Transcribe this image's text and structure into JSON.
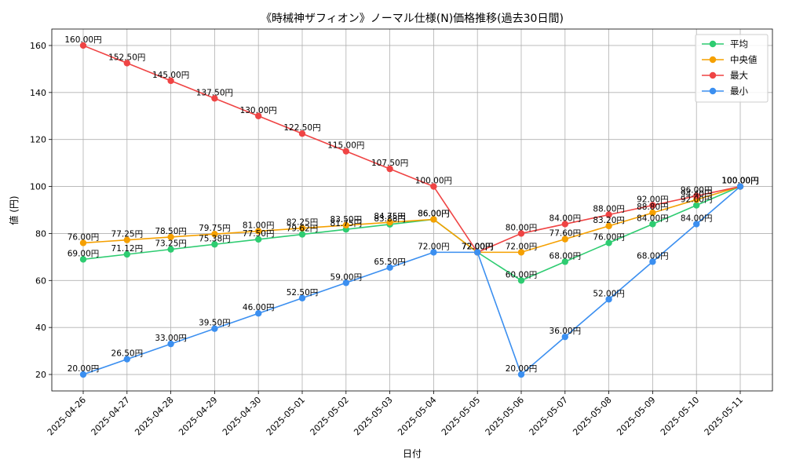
{
  "chart_data": {
    "type": "line",
    "title": "《時械神ザフィオン》ノーマル仕様(N)価格推移(過去30日間)",
    "xlabel": "日付",
    "ylabel": "値 (円)",
    "ylim": [
      13,
      167
    ],
    "yticks": [
      20,
      40,
      60,
      80,
      100,
      120,
      140,
      160
    ],
    "grid": true,
    "legend_position": "top-right",
    "label_suffix": "円",
    "x": [
      "2025-04-26",
      "2025-04-27",
      "2025-04-28",
      "2025-04-29",
      "2025-04-30",
      "2025-05-01",
      "2025-05-02",
      "2025-05-03",
      "2025-05-04",
      "2025-05-05",
      "2025-05-06",
      "2025-05-07",
      "2025-05-08",
      "2025-05-09",
      "2025-05-10",
      "2025-05-11"
    ],
    "series": [
      {
        "name": "平均",
        "color": "#2ecc71",
        "values": [
          69.0,
          71.12,
          73.25,
          75.38,
          77.5,
          79.62,
          81.75,
          83.88,
          86.0,
          72.0,
          60.0,
          68.0,
          76.0,
          84.0,
          92.0,
          100.0
        ],
        "labels": [
          "69.00円",
          "71.12円",
          "73.25円",
          "75.38円",
          "77.50円",
          "79.62円",
          "81.75円",
          "83.88円",
          "86.00円",
          "72.00円",
          "60.00円",
          "68.00円",
          "76.00円",
          "84.00円",
          "92.00円",
          "100.00円"
        ]
      },
      {
        "name": "中央値",
        "color": "#f5a000",
        "values": [
          76.0,
          77.25,
          78.5,
          79.75,
          81.0,
          82.25,
          83.5,
          84.75,
          86.0,
          72.0,
          72.0,
          77.6,
          83.2,
          88.8,
          94.4,
          100.0
        ],
        "labels": [
          "76.00円",
          "77.25円",
          "78.50円",
          "79.75円",
          "81.00円",
          "82.25円",
          "83.50円",
          "84.75円",
          "86.00円",
          "72.00円",
          "72.00円",
          "77.60円",
          "83.20円",
          "88.80円",
          "94.40円",
          "100.00円"
        ]
      },
      {
        "name": "最大",
        "color": "#ef4444",
        "values": [
          160.0,
          152.5,
          145.0,
          137.5,
          130.0,
          122.5,
          115.0,
          107.5,
          100.0,
          72.0,
          80.0,
          84.0,
          88.0,
          92.0,
          96.0,
          100.0
        ],
        "labels": [
          "160.00円",
          "152.50円",
          "145.00円",
          "137.50円",
          "130.00円",
          "122.50円",
          "115.00円",
          "107.50円",
          "100.00円",
          "72.00円",
          "80.00円",
          "84.00円",
          "88.00円",
          "92.00円",
          "96.00円",
          "100.00円"
        ]
      },
      {
        "name": "最小",
        "color": "#3b8ff0",
        "values": [
          20.0,
          26.5,
          33.0,
          39.5,
          46.0,
          52.5,
          59.0,
          65.5,
          72.0,
          72.0,
          20.0,
          36.0,
          52.0,
          68.0,
          84.0,
          100.0
        ],
        "labels": [
          "20.00円",
          "26.50円",
          "33.00円",
          "39.50円",
          "46.00円",
          "52.50円",
          "59.00円",
          "65.50円",
          "72.00円",
          "72.00円",
          "20.00円",
          "36.00円",
          "52.00円",
          "68.00円",
          "84.00円",
          "100.00円"
        ]
      }
    ]
  }
}
